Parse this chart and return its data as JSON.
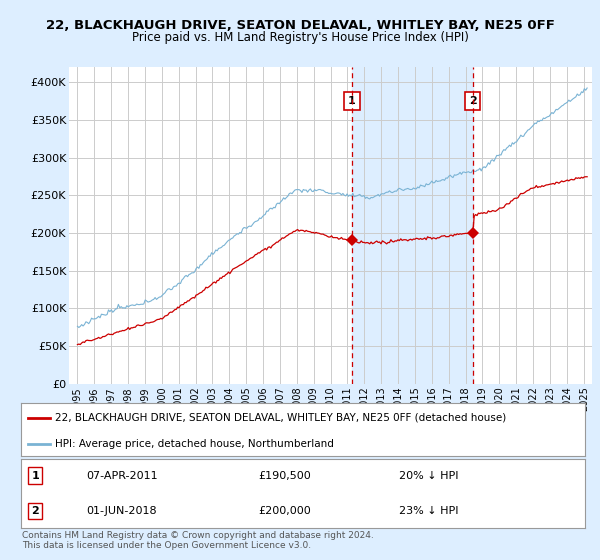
{
  "title": "22, BLACKHAUGH DRIVE, SEATON DELAVAL, WHITLEY BAY, NE25 0FF",
  "subtitle": "Price paid vs. HM Land Registry's House Price Index (HPI)",
  "title_fontsize": 9.5,
  "subtitle_fontsize": 8.5,
  "ylabel_ticks": [
    "£0",
    "£50K",
    "£100K",
    "£150K",
    "£200K",
    "£250K",
    "£300K",
    "£350K",
    "£400K"
  ],
  "ytick_values": [
    0,
    50000,
    100000,
    150000,
    200000,
    250000,
    300000,
    350000,
    400000
  ],
  "ylim": [
    0,
    420000
  ],
  "xlim_start": 1994.5,
  "xlim_end": 2025.5,
  "xtick_years": [
    1995,
    1996,
    1997,
    1998,
    1999,
    2000,
    2001,
    2002,
    2003,
    2004,
    2005,
    2006,
    2007,
    2008,
    2009,
    2010,
    2011,
    2012,
    2013,
    2014,
    2015,
    2016,
    2017,
    2018,
    2019,
    2020,
    2021,
    2022,
    2023,
    2024,
    2025
  ],
  "hpi_color": "#7ab3d4",
  "price_color": "#cc0000",
  "vline_color": "#cc0000",
  "marker_color": "#cc0000",
  "background_color": "#ddeeff",
  "plot_bg_color": "#ffffff",
  "shade_color": "#ddeeff",
  "grid_color": "#cccccc",
  "transaction1_x": 2011.27,
  "transaction2_x": 2018.42,
  "transaction1_y": 190500,
  "transaction2_y": 200000,
  "legend_label_price": "22, BLACKHAUGH DRIVE, SEATON DELAVAL, WHITLEY BAY, NE25 0FF (detached house)",
  "legend_label_hpi": "HPI: Average price, detached house, Northumberland",
  "note1_num": "1",
  "note1_date": "07-APR-2011",
  "note1_price": "£190,500",
  "note1_pct": "20% ↓ HPI",
  "note2_num": "2",
  "note2_date": "01-JUN-2018",
  "note2_price": "£200,000",
  "note2_pct": "23% ↓ HPI",
  "copyright": "Contains HM Land Registry data © Crown copyright and database right 2024.\nThis data is licensed under the Open Government Licence v3.0."
}
